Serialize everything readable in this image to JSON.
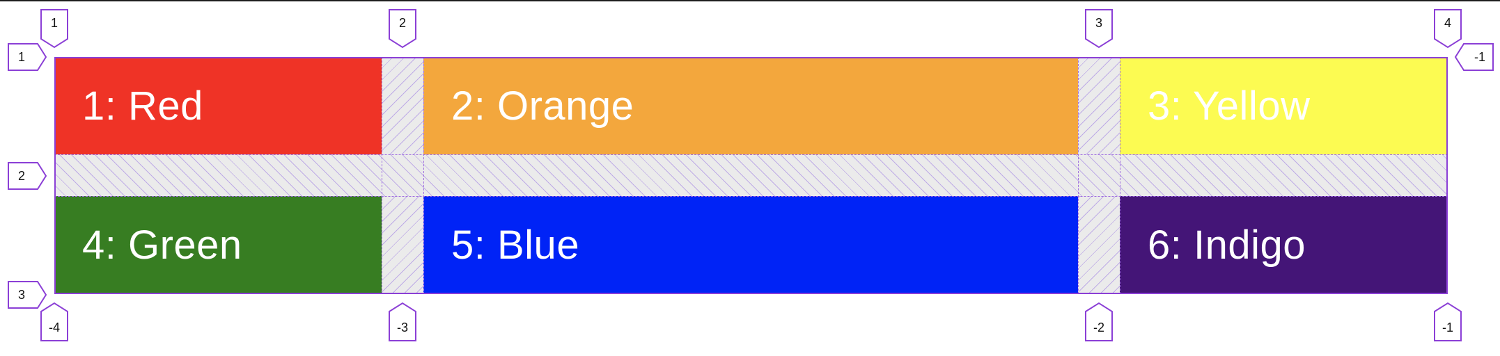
{
  "grid": {
    "cells": [
      {
        "label": "1: Red",
        "color": "#ef3326"
      },
      {
        "label": "2: Orange",
        "color": "#f3a73d"
      },
      {
        "label": "3: Yellow",
        "color": "#fcfb52"
      },
      {
        "label": "4: Green",
        "color": "#377d22"
      },
      {
        "label": "5: Blue",
        "color": "#0023f6"
      },
      {
        "label": "6: Indigo",
        "color": "#441577"
      }
    ],
    "column_numbers_top": [
      "1",
      "2",
      "3",
      "4"
    ],
    "column_numbers_bottom": [
      "-4",
      "-3",
      "-2",
      "-1"
    ],
    "row_numbers_left": [
      "1",
      "2",
      "3"
    ],
    "row_numbers_right": [
      "-1"
    ],
    "gap_color": "#ebebeb",
    "gridline_color": "#8b3fd6"
  }
}
